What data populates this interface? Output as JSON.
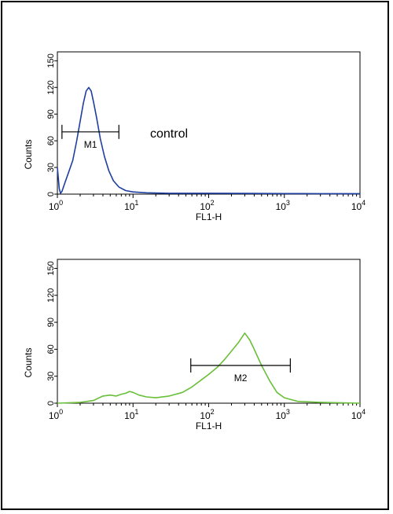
{
  "chart_data": [
    {
      "type": "line",
      "xlabel": "FL1-H",
      "ylabel": "Counts",
      "x_scale": "log",
      "xlim": [
        1,
        10000
      ],
      "ylim": [
        0,
        160
      ],
      "x_ticks": [
        {
          "base": "10",
          "exp": "0",
          "value": 1
        },
        {
          "base": "10",
          "exp": "1",
          "value": 10
        },
        {
          "base": "10",
          "exp": "2",
          "value": 100
        },
        {
          "base": "10",
          "exp": "3",
          "value": 1000
        },
        {
          "base": "10",
          "exp": "4",
          "value": 10000
        }
      ],
      "y_ticks": [
        "0",
        "30",
        "60",
        "90",
        "120",
        "150"
      ],
      "annotation": "control",
      "gate": {
        "label": "M1",
        "x_start": 1.15,
        "x_end": 6.5,
        "y": 70
      },
      "series": [
        {
          "color": "#1e3fa0",
          "points": [
            [
              1.0,
              30
            ],
            [
              1.03,
              18
            ],
            [
              1.06,
              6
            ],
            [
              1.1,
              1
            ],
            [
              1.15,
              3
            ],
            [
              1.25,
              12
            ],
            [
              1.4,
              24
            ],
            [
              1.6,
              38
            ],
            [
              1.8,
              60
            ],
            [
              2.0,
              82
            ],
            [
              2.2,
              102
            ],
            [
              2.4,
              116
            ],
            [
              2.6,
              120
            ],
            [
              2.8,
              116
            ],
            [
              3.0,
              104
            ],
            [
              3.3,
              86
            ],
            [
              3.7,
              62
            ],
            [
              4.2,
              42
            ],
            [
              4.8,
              26
            ],
            [
              5.5,
              15
            ],
            [
              6.5,
              8
            ],
            [
              8,
              4
            ],
            [
              10,
              2.5
            ],
            [
              15,
              1.5
            ],
            [
              30,
              1
            ],
            [
              100,
              1
            ],
            [
              300,
              0.8
            ],
            [
              1000,
              0.6
            ],
            [
              3000,
              0.5
            ],
            [
              10000,
              0.5
            ]
          ]
        }
      ]
    },
    {
      "type": "line",
      "xlabel": "FL1-H",
      "ylabel": "Counts",
      "x_scale": "log",
      "xlim": [
        1,
        10000
      ],
      "ylim": [
        0,
        160
      ],
      "x_ticks": [
        {
          "base": "10",
          "exp": "0",
          "value": 1
        },
        {
          "base": "10",
          "exp": "1",
          "value": 10
        },
        {
          "base": "10",
          "exp": "2",
          "value": 100
        },
        {
          "base": "10",
          "exp": "3",
          "value": 1000
        },
        {
          "base": "10",
          "exp": "4",
          "value": 10000
        }
      ],
      "y_ticks": [
        "0",
        "30",
        "60",
        "90",
        "120",
        "150"
      ],
      "gate": {
        "label": "M2",
        "x_start": 58,
        "x_end": 1200,
        "y": 42
      },
      "series": [
        {
          "color": "#6abf3a",
          "points": [
            [
              1.0,
              0
            ],
            [
              1.5,
              0.5
            ],
            [
              2.0,
              1
            ],
            [
              3.0,
              3
            ],
            [
              4.0,
              8
            ],
            [
              5.0,
              9
            ],
            [
              6.0,
              8
            ],
            [
              7.0,
              10
            ],
            [
              8.0,
              11
            ],
            [
              9.0,
              13
            ],
            [
              10.0,
              12
            ],
            [
              12.0,
              9
            ],
            [
              15.0,
              7
            ],
            [
              20.0,
              6
            ],
            [
              30.0,
              8
            ],
            [
              45.0,
              12
            ],
            [
              60.0,
              18
            ],
            [
              80.0,
              26
            ],
            [
              100.0,
              32
            ],
            [
              130.0,
              40
            ],
            [
              160.0,
              48
            ],
            [
              200.0,
              58
            ],
            [
              250.0,
              68
            ],
            [
              300.0,
              78
            ],
            [
              350.0,
              70
            ],
            [
              400.0,
              60
            ],
            [
              500.0,
              42
            ],
            [
              650.0,
              24
            ],
            [
              800.0,
              12
            ],
            [
              1000.0,
              6
            ],
            [
              1500.0,
              2
            ],
            [
              3000.0,
              1
            ],
            [
              10000.0,
              0
            ]
          ]
        }
      ]
    }
  ]
}
